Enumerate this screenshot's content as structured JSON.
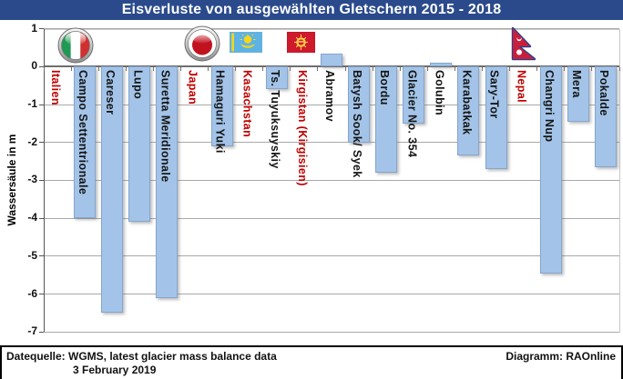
{
  "title": "Eisverluste von ausgewählten Gletschern 2015 - 2018",
  "footer": {
    "source_line1": "Datequelle: WGMS, latest glacier mass balance data",
    "source_line2": "3 February 2019",
    "credit": "Diagramm: RAOnline"
  },
  "colors": {
    "title_bar": "#2A4A8C",
    "bar_fill": "#A3C4E8",
    "country_label": "#C00000",
    "gridline": "#A9A9A9",
    "zero_line": "#6E6E6E"
  },
  "chart_data": {
    "type": "bar",
    "title": "Eisverluste von ausgewählten Gletschern 2015 - 2018",
    "xlabel": "",
    "ylabel": "Wassersäule in m",
    "ylim": [
      -7,
      1
    ],
    "ytick_step": 1,
    "grid": true,
    "legend": "none",
    "bar_color": "#A3C4E8",
    "groups": [
      {
        "country": "Italien",
        "flag": "italy",
        "glaciers": [
          {
            "name": "Campo Settentrionale",
            "value": -4.0
          },
          {
            "name": "Careser",
            "value": -6.5
          },
          {
            "name": "Lupo",
            "value": -4.1
          },
          {
            "name": "Suretta Meridionale",
            "value": -6.1
          }
        ]
      },
      {
        "country": "Japan",
        "flag": "japan",
        "glaciers": [
          {
            "name": "Hamaguri Yuki",
            "value": -2.1
          }
        ]
      },
      {
        "country": "Kasachstan",
        "flag": "kazakhstan",
        "glaciers": [
          {
            "name": "Ts. Tuyuksuyskiy",
            "value": -0.6
          }
        ]
      },
      {
        "country": "Kirgistan (Kirgisien)",
        "flag": "kyrgyzstan",
        "glaciers": [
          {
            "name": "Abramov",
            "value": 0.35
          },
          {
            "name": "Batysh Sook/ Syek",
            "value": -2.0
          },
          {
            "name": "Bordu",
            "value": -2.8
          },
          {
            "name": "Glacier No. 354",
            "value": -1.5
          },
          {
            "name": "Golubin",
            "value": 0.1
          },
          {
            "name": "Karabatkak",
            "value": -2.35
          },
          {
            "name": "Sary-Tor",
            "value": -2.7
          }
        ]
      },
      {
        "country": "Nepal",
        "flag": "nepal",
        "glaciers": [
          {
            "name": "Changri Nup",
            "value": -5.45
          },
          {
            "name": "Mera",
            "value": -1.45
          },
          {
            "name": "Pokalde",
            "value": -2.65
          }
        ]
      }
    ]
  }
}
